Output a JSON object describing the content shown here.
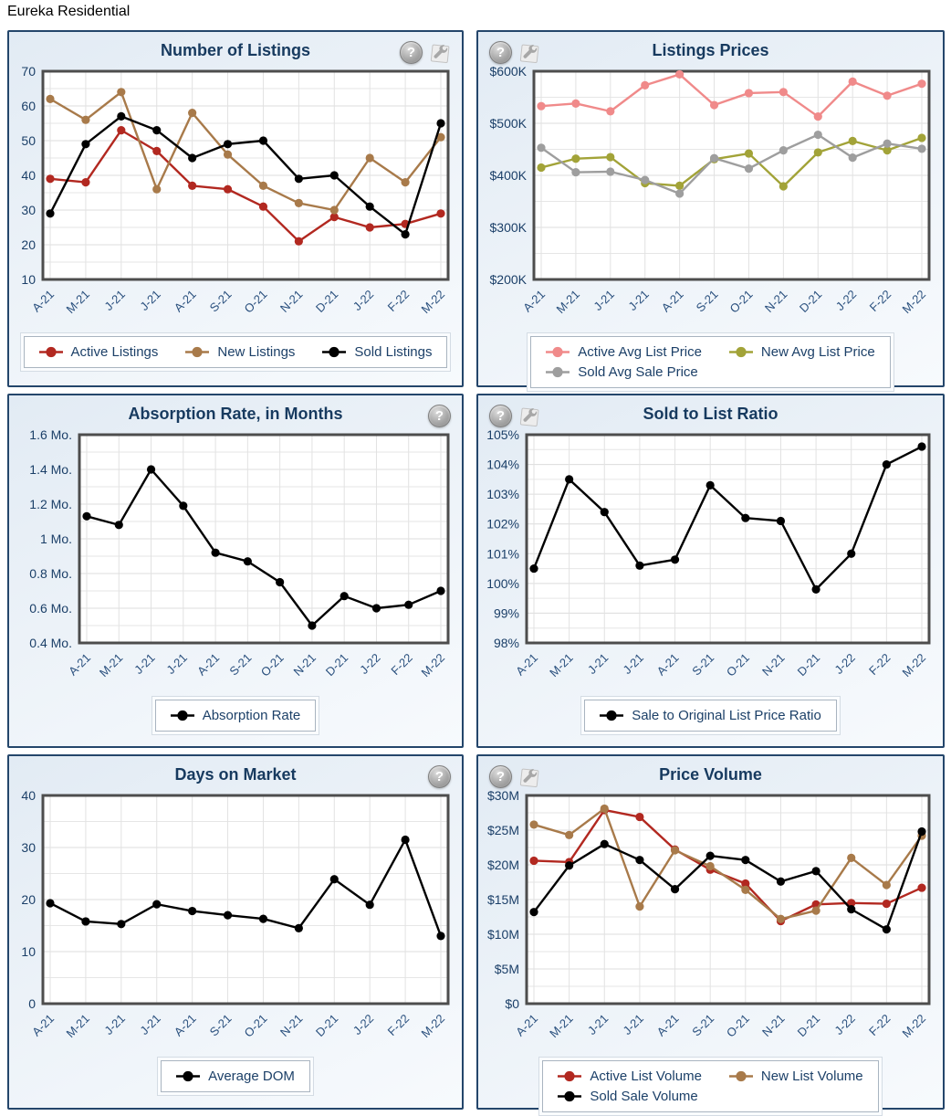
{
  "page": {
    "title": "Eureka Residential"
  },
  "icons": {
    "help_glyph": "?"
  },
  "chart_data": [
    {
      "type": "line",
      "title": "Number of Listings",
      "categories": [
        "A-21",
        "M-21",
        "J-21",
        "J-21",
        "A-21",
        "S-21",
        "O-21",
        "N-21",
        "D-21",
        "J-22",
        "F-22",
        "M-22"
      ],
      "ylim": [
        10,
        70
      ],
      "yticks": [
        {
          "v": 10,
          "label": "10"
        },
        {
          "v": 20,
          "label": "20"
        },
        {
          "v": 30,
          "label": "30"
        },
        {
          "v": 40,
          "label": "40"
        },
        {
          "v": 50,
          "label": "50"
        },
        {
          "v": 60,
          "label": "60"
        },
        {
          "v": 70,
          "label": "70"
        }
      ],
      "grid": true,
      "legend_position": "bottom",
      "legend_rows": [
        [
          0,
          1,
          2
        ]
      ],
      "series": [
        {
          "name": "Active Listings",
          "color": "#b22820",
          "values": [
            39,
            38,
            53,
            47,
            37,
            36,
            31,
            21,
            28,
            25,
            26,
            29
          ]
        },
        {
          "name": "New Listings",
          "color": "#a87a4a",
          "values": [
            62,
            56,
            64,
            36,
            58,
            46,
            37,
            32,
            30,
            45,
            38,
            51
          ]
        },
        {
          "name": "Sold Listings",
          "color": "#000000",
          "values": [
            29,
            49,
            57,
            53,
            45,
            49,
            50,
            39,
            40,
            31,
            23,
            55
          ]
        }
      ]
    },
    {
      "type": "line",
      "title": "Listings Prices",
      "categories": [
        "A-21",
        "M-21",
        "J-21",
        "J-21",
        "A-21",
        "S-21",
        "O-21",
        "N-21",
        "D-21",
        "J-22",
        "F-22",
        "M-22"
      ],
      "ylim": [
        200,
        600
      ],
      "yticks": [
        {
          "v": 200,
          "label": "$200K"
        },
        {
          "v": 300,
          "label": "$300K"
        },
        {
          "v": 400,
          "label": "$400K"
        },
        {
          "v": 500,
          "label": "$500K"
        },
        {
          "v": 600,
          "label": "$600K"
        }
      ],
      "grid": true,
      "unit": "thousand USD",
      "legend_position": "bottom",
      "legend_rows": [
        [
          0,
          1
        ],
        [
          2
        ]
      ],
      "series": [
        {
          "name": "Active Avg List Price",
          "color": "#f08a8a",
          "values": [
            533,
            538,
            523,
            573,
            594,
            535,
            558,
            560,
            513,
            580,
            553,
            576
          ]
        },
        {
          "name": "New Avg List Price",
          "color": "#a2a338",
          "values": [
            415,
            432,
            435,
            385,
            380,
            431,
            442,
            379,
            444,
            466,
            448,
            472
          ]
        },
        {
          "name": "Sold Avg Sale Price",
          "color": "#9e9e9e",
          "values": [
            453,
            406,
            407,
            391,
            365,
            433,
            413,
            448,
            478,
            434,
            461,
            451
          ]
        }
      ]
    },
    {
      "type": "line",
      "title": "Absorption Rate, in Months",
      "categories": [
        "A-21",
        "M-21",
        "J-21",
        "J-21",
        "A-21",
        "S-21",
        "O-21",
        "N-21",
        "D-21",
        "J-22",
        "F-22",
        "M-22"
      ],
      "ylim": [
        0.4,
        1.6
      ],
      "yticks": [
        {
          "v": 0.4,
          "label": "0.4 Mo."
        },
        {
          "v": 0.6,
          "label": "0.6 Mo."
        },
        {
          "v": 0.8,
          "label": "0.8 Mo."
        },
        {
          "v": 1,
          "label": "1 Mo."
        },
        {
          "v": 1.2,
          "label": "1.2 Mo."
        },
        {
          "v": 1.4,
          "label": "1.4 Mo."
        },
        {
          "v": 1.6,
          "label": "1.6 Mo."
        }
      ],
      "grid": true,
      "legend_position": "bottom",
      "legend_rows": [
        [
          0
        ]
      ],
      "series": [
        {
          "name": "Absorption Rate",
          "color": "#000000",
          "values": [
            1.13,
            1.08,
            1.4,
            1.19,
            0.92,
            0.87,
            0.75,
            0.5,
            0.67,
            0.6,
            0.62,
            0.7
          ]
        }
      ]
    },
    {
      "type": "line",
      "title": "Sold to List Ratio",
      "categories": [
        "A-21",
        "M-21",
        "J-21",
        "J-21",
        "A-21",
        "S-21",
        "O-21",
        "N-21",
        "D-21",
        "J-22",
        "F-22",
        "M-22"
      ],
      "ylim": [
        98,
        105
      ],
      "yticks": [
        {
          "v": 98,
          "label": "98%"
        },
        {
          "v": 99,
          "label": "99%"
        },
        {
          "v": 100,
          "label": "100%"
        },
        {
          "v": 101,
          "label": "101%"
        },
        {
          "v": 102,
          "label": "102%"
        },
        {
          "v": 103,
          "label": "103%"
        },
        {
          "v": 104,
          "label": "104%"
        },
        {
          "v": 105,
          "label": "105%"
        }
      ],
      "grid": true,
      "legend_position": "bottom",
      "legend_rows": [
        [
          0
        ]
      ],
      "series": [
        {
          "name": "Sale to Original List Price Ratio",
          "color": "#000000",
          "values": [
            100.5,
            103.5,
            102.4,
            100.6,
            100.8,
            103.3,
            102.2,
            102.1,
            99.8,
            101.0,
            104.0,
            104.6
          ]
        }
      ]
    },
    {
      "type": "line",
      "title": "Days on Market",
      "categories": [
        "A-21",
        "M-21",
        "J-21",
        "J-21",
        "A-21",
        "S-21",
        "O-21",
        "N-21",
        "D-21",
        "J-22",
        "F-22",
        "M-22"
      ],
      "ylim": [
        0,
        40
      ],
      "yticks": [
        {
          "v": 0,
          "label": "0"
        },
        {
          "v": 10,
          "label": "10"
        },
        {
          "v": 20,
          "label": "20"
        },
        {
          "v": 30,
          "label": "30"
        },
        {
          "v": 40,
          "label": "40"
        }
      ],
      "grid": true,
      "legend_position": "bottom",
      "legend_rows": [
        [
          0
        ]
      ],
      "series": [
        {
          "name": "Average DOM",
          "color": "#000000",
          "values": [
            19.3,
            15.8,
            15.3,
            19.1,
            17.8,
            17.0,
            16.3,
            14.5,
            23.9,
            19.0,
            31.5,
            13.0
          ]
        }
      ]
    },
    {
      "type": "line",
      "title": "Price Volume",
      "categories": [
        "A-21",
        "M-21",
        "J-21",
        "J-21",
        "A-21",
        "S-21",
        "O-21",
        "N-21",
        "D-21",
        "J-22",
        "F-22",
        "M-22"
      ],
      "ylim": [
        0,
        30
      ],
      "yticks": [
        {
          "v": 0,
          "label": "$0"
        },
        {
          "v": 5,
          "label": "$5M"
        },
        {
          "v": 10,
          "label": "$10M"
        },
        {
          "v": 15,
          "label": "$15M"
        },
        {
          "v": 20,
          "label": "$20M"
        },
        {
          "v": 25,
          "label": "$25M"
        },
        {
          "v": 30,
          "label": "$30M"
        }
      ],
      "grid": true,
      "unit": "million USD",
      "legend_position": "bottom",
      "legend_rows": [
        [
          0,
          1
        ],
        [
          2
        ]
      ],
      "series": [
        {
          "name": "Active List Volume",
          "color": "#b22820",
          "values": [
            20.6,
            20.4,
            27.9,
            26.9,
            22.2,
            19.3,
            17.3,
            11.9,
            14.3,
            14.5,
            14.4,
            16.7
          ]
        },
        {
          "name": "New List Volume",
          "color": "#a87a4a",
          "values": [
            25.8,
            24.3,
            28.1,
            14.0,
            22.1,
            19.8,
            16.4,
            12.2,
            13.4,
            21.0,
            17.1,
            24.2
          ]
        },
        {
          "name": "Sold Sale Volume",
          "color": "#000000",
          "values": [
            13.2,
            19.9,
            23.0,
            20.7,
            16.5,
            21.3,
            20.7,
            17.6,
            19.1,
            13.6,
            10.7,
            24.8
          ]
        }
      ]
    }
  ],
  "colors": {
    "panel_border": "#24466b",
    "title_navy": "#173a5f",
    "axis_label_navy": "#1b3f68",
    "x_label_navy": "#2a507e",
    "plot_frame": "#4d4d4d",
    "gridline": "#dedede",
    "series_red": "#b22820",
    "series_brown": "#a87a4a",
    "series_pink": "#f08a8a",
    "series_olive": "#a2a338",
    "series_gray": "#9e9e9e",
    "series_black": "#000000"
  }
}
